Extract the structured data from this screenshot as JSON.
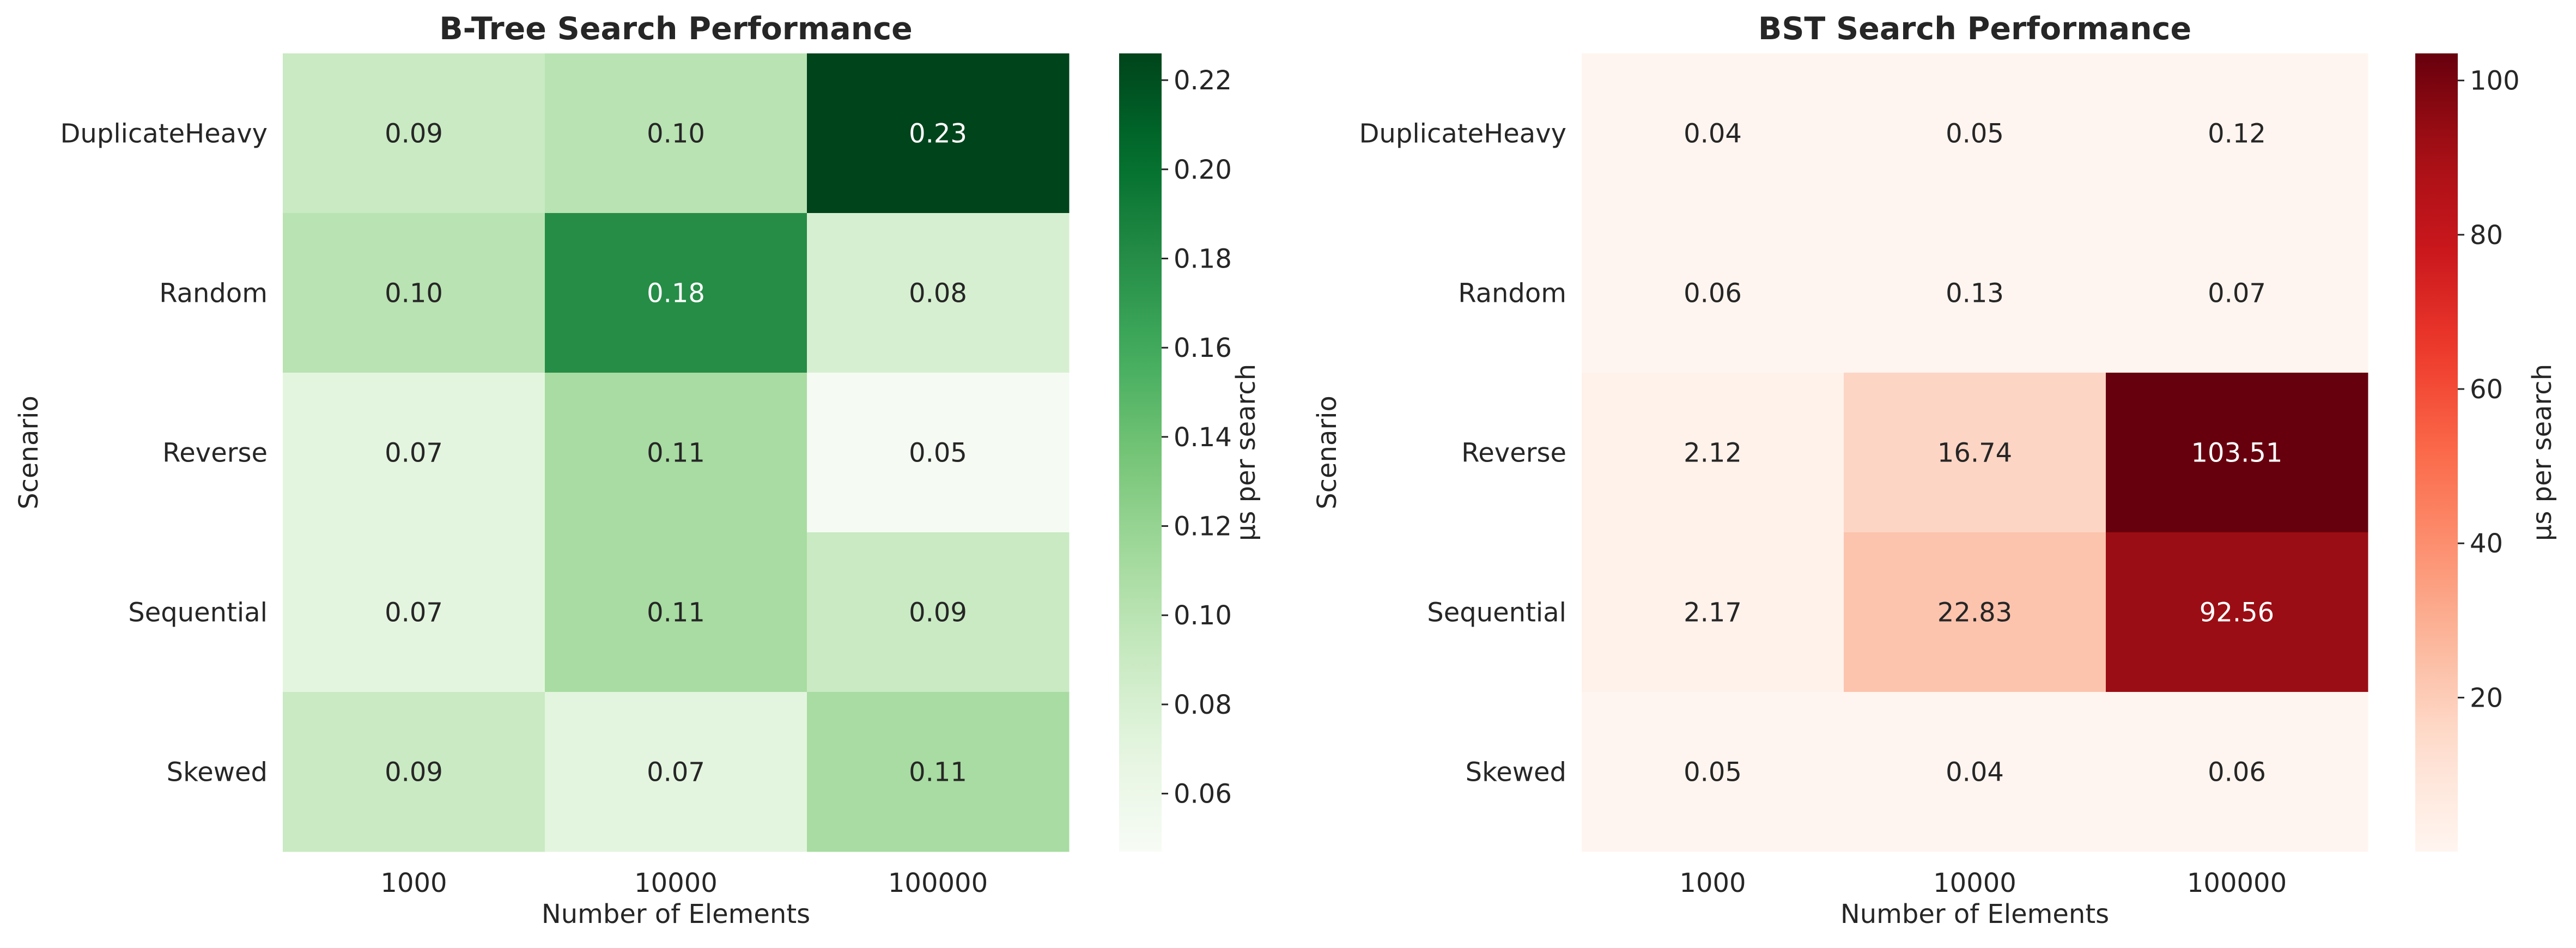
{
  "chart_data": [
    {
      "type": "heatmap",
      "title": "B-Tree Search Performance",
      "xlabel": "Number of Elements",
      "ylabel": "Scenario",
      "x_categories": [
        "1000",
        "10000",
        "100000"
      ],
      "y_categories": [
        "DuplicateHeavy",
        "Random",
        "Reverse",
        "Sequential",
        "Skewed"
      ],
      "values": [
        [
          0.09,
          0.1,
          0.23
        ],
        [
          0.1,
          0.18,
          0.08
        ],
        [
          0.07,
          0.11,
          0.05
        ],
        [
          0.07,
          0.11,
          0.09
        ],
        [
          0.09,
          0.07,
          0.11
        ]
      ],
      "colormap": "Greens",
      "colorbar": {
        "label": "µs per search",
        "range": [
          0.047,
          0.226
        ],
        "ticks": [
          "0.06",
          "0.08",
          "0.10",
          "0.12",
          "0.14",
          "0.16",
          "0.18",
          "0.20",
          "0.22"
        ]
      }
    },
    {
      "type": "heatmap",
      "title": "BST Search Performance",
      "xlabel": "Number of Elements",
      "ylabel": "Scenario",
      "x_categories": [
        "1000",
        "10000",
        "100000"
      ],
      "y_categories": [
        "DuplicateHeavy",
        "Random",
        "Reverse",
        "Sequential",
        "Skewed"
      ],
      "values": [
        [
          0.04,
          0.05,
          0.12
        ],
        [
          0.06,
          0.13,
          0.07
        ],
        [
          2.12,
          16.74,
          103.51
        ],
        [
          2.17,
          22.83,
          92.56
        ],
        [
          0.05,
          0.04,
          0.06
        ]
      ],
      "colormap": "Reds",
      "colorbar": {
        "label": "µs per search",
        "range": [
          0.04,
          103.51
        ],
        "ticks": [
          "20",
          "40",
          "60",
          "80",
          "100"
        ]
      }
    }
  ]
}
